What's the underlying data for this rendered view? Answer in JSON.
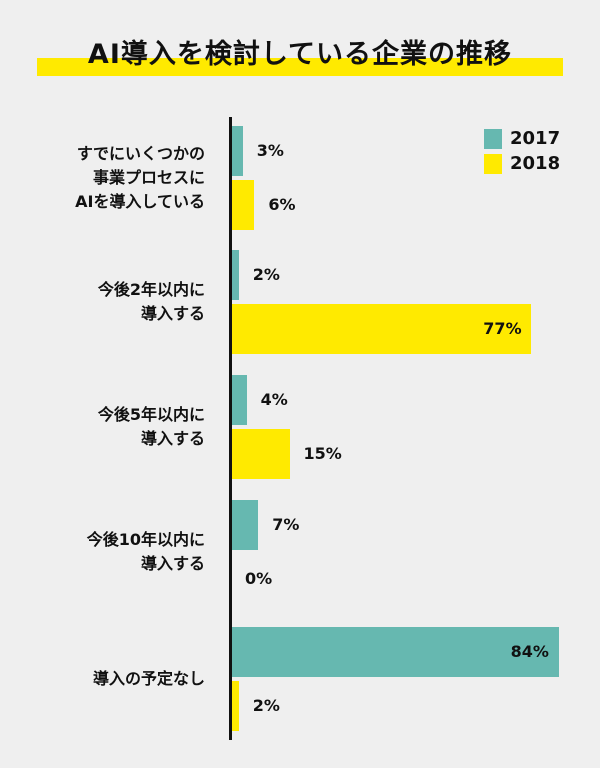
{
  "chart_data": {
    "type": "bar",
    "orientation": "horizontal",
    "title": "AI導入を検討している企業の推移",
    "categories": [
      "すでにいくつかの\n事業プロセスに\nAIを導入している",
      "今後2年以内に\n導入する",
      "今後5年以内に\n導入する",
      "今後10年以内に\n導入する",
      "導入の予定なし"
    ],
    "series": [
      {
        "name": "2017",
        "color": "#66b8b0",
        "values": [
          3,
          2,
          4,
          7,
          84
        ]
      },
      {
        "name": "2018",
        "color": "#ffea00",
        "values": [
          6,
          77,
          15,
          0,
          2
        ]
      }
    ],
    "unit": "%",
    "legend": "top-right"
  }
}
